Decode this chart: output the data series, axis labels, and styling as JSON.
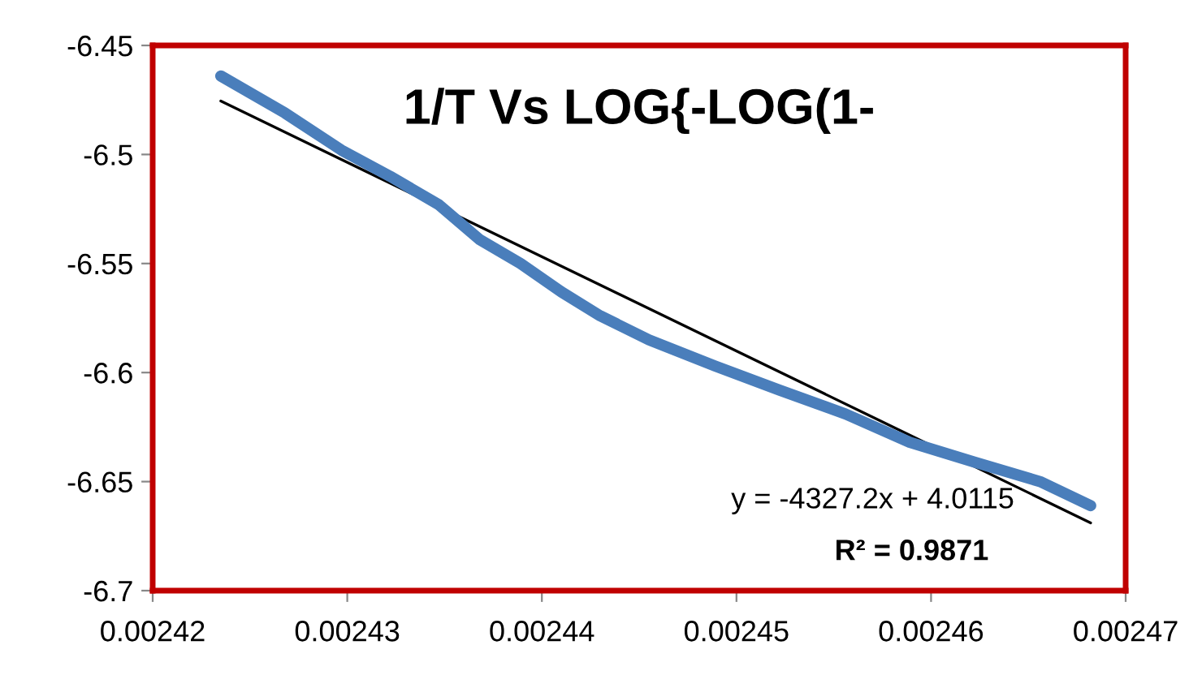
{
  "chart_data": {
    "type": "line",
    "title": "1/T Vs LOG{-LOG(1-",
    "series": [
      {
        "color": "#4a7ebb",
        "x": [
          0.0024235,
          0.0024268,
          0.0024297,
          0.0024322,
          0.0024347,
          0.0024368,
          0.0024389,
          0.002441,
          0.002443,
          0.0024455,
          0.0024489,
          0.0024522,
          0.0024556,
          0.0024589,
          0.0024622,
          0.0024656,
          0.0024682
        ],
        "values": [
          -6.464,
          -6.481,
          -6.498,
          -6.51,
          -6.523,
          -6.539,
          -6.55,
          -6.563,
          -6.574,
          -6.585,
          -6.597,
          -6.608,
          -6.619,
          -6.632,
          -6.641,
          -6.65,
          -6.661
        ]
      },
      {
        "type": "line",
        "color": "#000000",
        "x": [
          0.0024235,
          0.0024682
        ],
        "values": [
          -6.4755,
          -6.6689
        ]
      }
    ],
    "annotations": [
      "y = -4327.2x + 4.0115",
      "R² = 0.9871"
    ],
    "xlim": [
      0.00242,
      0.00247
    ],
    "xticks": [
      0.00242,
      0.00243,
      0.00244,
      0.00245,
      0.00246,
      0.00247
    ],
    "ylim": [
      -6.7,
      -6.45
    ],
    "yticks": [
      -6.7,
      -6.65,
      -6.6,
      -6.55,
      -6.5,
      -6.45
    ],
    "grid": false,
    "legend": false,
    "marker": "none",
    "line_style": "solid"
  }
}
